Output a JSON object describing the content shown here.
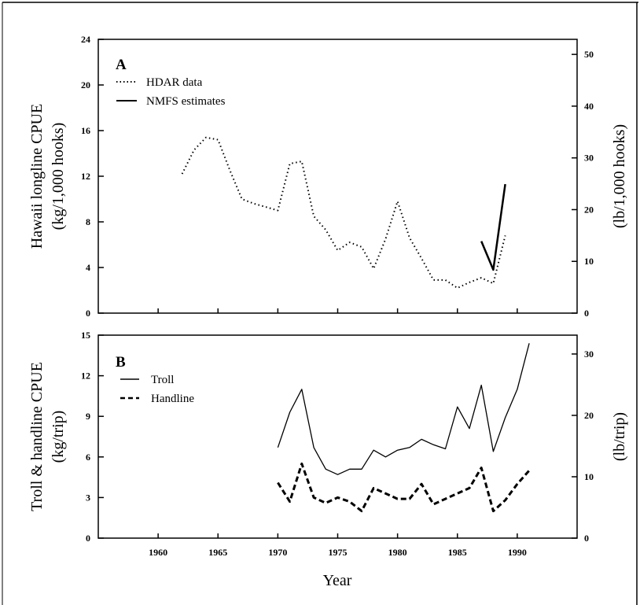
{
  "chart_data": [
    {
      "type": "line",
      "panel_letter": "A",
      "xlim": [
        1955,
        1995
      ],
      "ylim": [
        0,
        24
      ],
      "y_ticks": [
        0,
        4,
        8,
        12,
        16,
        20,
        24
      ],
      "y2lim": [
        0,
        52.91
      ],
      "y2_ticks": [
        0,
        10,
        20,
        30,
        40,
        50
      ],
      "ylabel_line1": "Hawaii longline CPUE",
      "ylabel_line2": "(kg/1,000 hooks)",
      "y2label": "(lb/1,000 hooks)",
      "legend_placement": "top-left",
      "series": [
        {
          "name": "HDAR data",
          "style": "dotted",
          "x": [
            1962,
            1963,
            1964,
            1965,
            1966,
            1967,
            1968,
            1969,
            1970,
            1971,
            1972,
            1973,
            1974,
            1975,
            1976,
            1977,
            1978,
            1979,
            1980,
            1981,
            1982,
            1983,
            1984,
            1985,
            1986,
            1987,
            1988,
            1989
          ],
          "y": [
            12.2,
            14.3,
            15.4,
            15.2,
            12.5,
            10.0,
            9.6,
            9.3,
            9.0,
            13.1,
            13.3,
            8.5,
            7.3,
            5.5,
            6.2,
            5.8,
            3.9,
            6.5,
            9.8,
            6.6,
            4.8,
            2.9,
            2.9,
            2.2,
            2.7,
            3.1,
            2.6,
            6.8
          ]
        },
        {
          "name": "NMFS estimates",
          "style": "solid",
          "x": [
            1987,
            1988,
            1989
          ],
          "y": [
            6.3,
            3.8,
            11.3
          ]
        }
      ]
    },
    {
      "type": "line",
      "panel_letter": "B",
      "xlim": [
        1955,
        1995
      ],
      "x_ticks": [
        1960,
        1965,
        1970,
        1975,
        1980,
        1985,
        1990
      ],
      "xlabel": "Year",
      "ylim": [
        0,
        15
      ],
      "y_ticks": [
        0,
        3,
        6,
        9,
        12,
        15
      ],
      "y2lim": [
        0,
        33.07
      ],
      "y2_ticks": [
        0,
        10,
        20,
        30
      ],
      "ylabel_line1": "Troll & handline CPUE",
      "ylabel_line2": "(kg/trip)",
      "y2label": "(lb/trip)",
      "legend_placement": "top-left",
      "series": [
        {
          "name": "Troll",
          "style": "solid",
          "x": [
            1970,
            1971,
            1972,
            1973,
            1974,
            1975,
            1976,
            1977,
            1978,
            1979,
            1980,
            1981,
            1982,
            1983,
            1984,
            1985,
            1986,
            1987,
            1988,
            1989,
            1990,
            1991
          ],
          "y": [
            6.7,
            9.3,
            11.0,
            6.7,
            5.1,
            4.7,
            5.1,
            5.1,
            6.5,
            6.0,
            6.5,
            6.7,
            7.3,
            6.9,
            6.6,
            9.7,
            8.1,
            11.3,
            6.4,
            8.9,
            11.0,
            14.4
          ]
        },
        {
          "name": "Handline",
          "style": "dashed",
          "x": [
            1970,
            1971,
            1972,
            1973,
            1974,
            1975,
            1976,
            1977,
            1978,
            1979,
            1980,
            1981,
            1982,
            1983,
            1984,
            1985,
            1986,
            1987,
            1988,
            1989,
            1990,
            1991
          ],
          "y": [
            4.1,
            2.7,
            5.5,
            3.0,
            2.6,
            3.0,
            2.7,
            2.0,
            3.7,
            3.3,
            2.9,
            2.9,
            4.0,
            2.5,
            2.9,
            3.3,
            3.7,
            5.2,
            2.0,
            2.8,
            4.0,
            5.0
          ]
        }
      ]
    }
  ]
}
